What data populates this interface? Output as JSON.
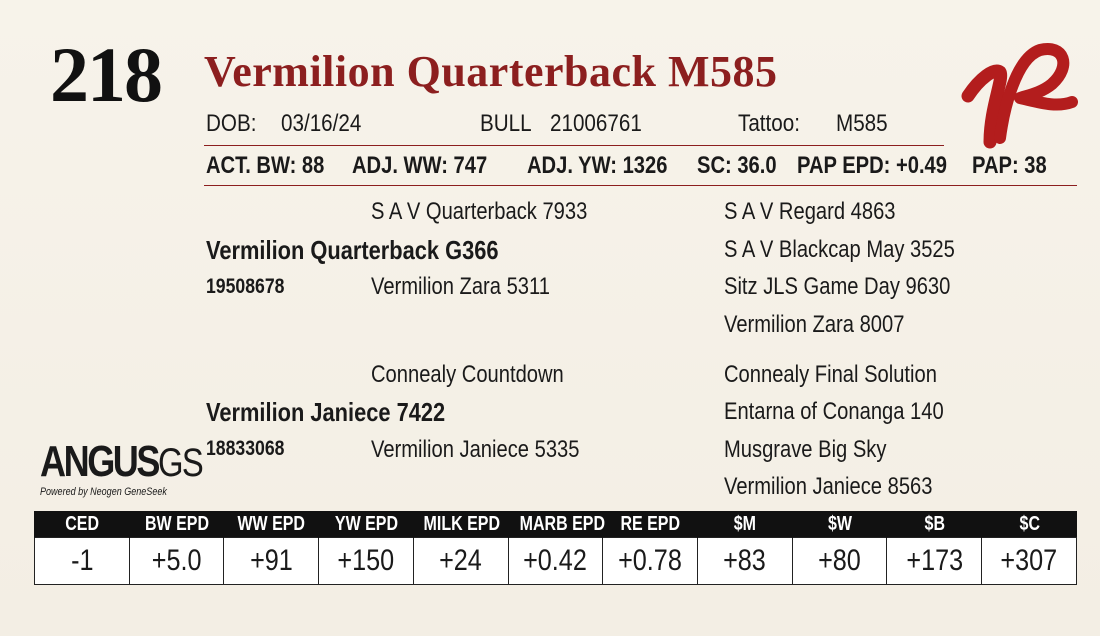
{
  "lot_number": "218",
  "animal_name": "Vermilion Quarterback M585",
  "colors": {
    "title": "#8c1f1f",
    "rule": "#8c1f1f",
    "logo": "#b31d1d",
    "table_header": "#111111"
  },
  "info": {
    "dob_label": "DOB:",
    "dob": "03/16/24",
    "sex": "BULL",
    "reg_number": "21006761",
    "tattoo_label": "Tattoo:",
    "tattoo": "M585"
  },
  "performance": {
    "act_bw": "ACT. BW: 88",
    "adj_ww": "ADJ. WW: 747",
    "adj_yw": "ADJ. YW: 1326",
    "sc": "SC: 36.0",
    "pap_epd": "PAP EPD: +0.49",
    "pap": "PAP: 38"
  },
  "pedigree": {
    "sire": {
      "name": "Vermilion Quarterback G366",
      "reg": "19508678",
      "sire": "S A V Quarterback 7933",
      "dam": "Vermilion Zara 5311",
      "sire_sire": "S A V Regard 4863",
      "sire_dam": "S A V Blackcap May 3525",
      "dam_sire": "Sitz JLS Game Day 9630",
      "dam_dam": "Vermilion Zara 8007"
    },
    "dam": {
      "name": "Vermilion Janiece 7422",
      "reg": "18833068",
      "sire": "Connealy Countdown",
      "dam": "Vermilion Janiece 5335",
      "sire_sire": "Connealy Final Solution",
      "sire_dam": "Entarna of Conanga 140",
      "dam_sire": "Musgrave Big Sky",
      "dam_dam": "Vermilion Janiece 8563"
    }
  },
  "brand_logo": {
    "main": "ANGUS",
    "suffix": "GS",
    "tagline": "Powered by Neogen GeneSeek"
  },
  "epd_headers": [
    "CED",
    "BW EPD",
    "WW EPD",
    "YW EPD",
    "MILK EPD",
    "MARB EPD",
    "RE EPD",
    "$M",
    "$W",
    "$B",
    "$C"
  ],
  "epd_values": [
    "-1",
    "+5.0",
    "+91",
    "+150",
    "+24",
    "+0.42",
    "+0.78",
    "+83",
    "+80",
    "+173",
    "+307"
  ]
}
